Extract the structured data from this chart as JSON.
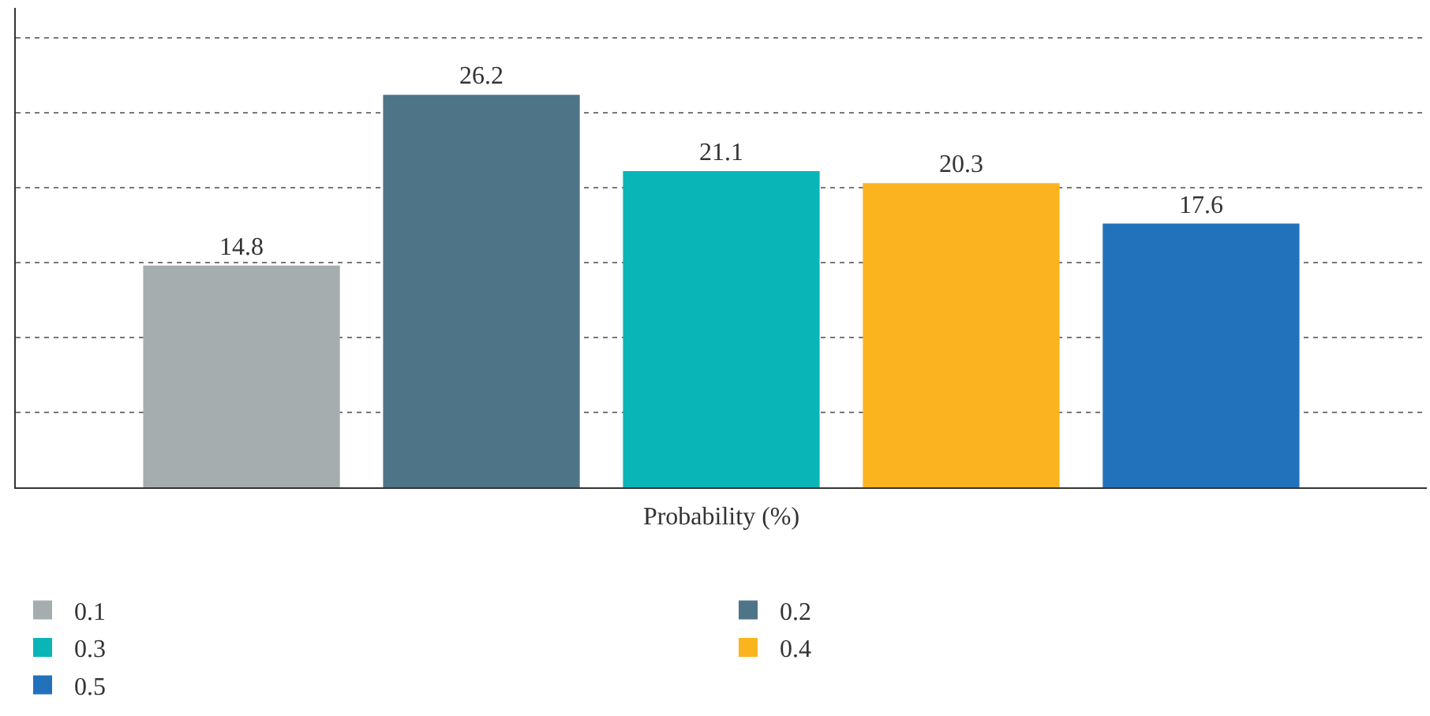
{
  "chart_data": {
    "type": "bar",
    "xlabel": "Probability (%)",
    "categories": [
      null
    ],
    "series": [
      {
        "name": "0.1",
        "color": "#a5adaf",
        "values": [
          14.8
        ]
      },
      {
        "name": "0.2",
        "color": "#4e7487",
        "values": [
          26.2
        ]
      },
      {
        "name": "0.3",
        "color": "#0ab5b8",
        "values": [
          21.1
        ]
      },
      {
        "name": "0.4",
        "color": "#fbb41f",
        "values": [
          20.3
        ]
      },
      {
        "name": "0.5",
        "color": "#2272bb",
        "values": [
          17.6
        ]
      }
    ],
    "ylim": [
      0,
      32
    ],
    "yticks": [
      {
        "value": 5,
        "label": null
      },
      {
        "value": 10,
        "label": null
      },
      {
        "value": 15,
        "label": null
      },
      {
        "value": 20,
        "label": null
      },
      {
        "value": 25,
        "label": null
      },
      {
        "value": 30,
        "label": null
      }
    ],
    "tick_labels": false,
    "grid": "y",
    "data_labels": true,
    "legend": "bottom"
  }
}
